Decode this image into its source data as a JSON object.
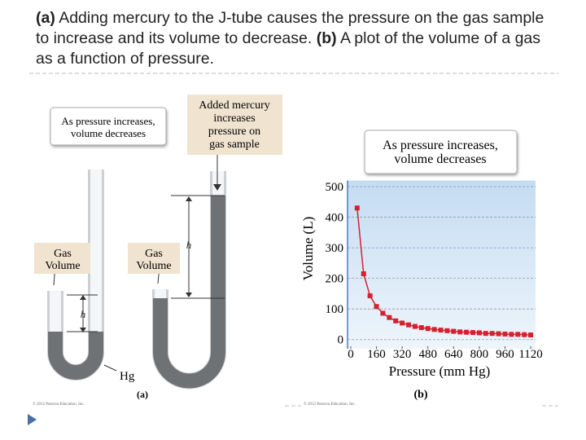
{
  "header": {
    "parts": [
      "(a)",
      "Adding mercury to the J-tube causes the pressure on the gas sample to increase and its volume to decrease.",
      "(b)",
      "A plot of the volume of a gas as a function of pressure."
    ]
  },
  "diagram": {
    "callout": [
      "As pressure increases,",
      "volume decreases"
    ],
    "added_mercury": [
      "Added mercury",
      "increases",
      "pressure on",
      "gas sample"
    ],
    "gas_volume_left": [
      "Gas",
      "Volume"
    ],
    "gas_volume_right": [
      "Gas",
      "Volume"
    ],
    "h_left": "h",
    "h_right": "h",
    "hg": "Hg",
    "label_a": "(a)",
    "label_b": "(b)",
    "copyright_a": "© 2012 Pearson Education, Inc.",
    "copyright_b": "© 2012 Pearson Education, Inc."
  },
  "chart_data": {
    "type": "line",
    "annotation": [
      "As pressure increases,",
      "volume decreases"
    ],
    "x_label": "Pressure (mm Hg)",
    "y_label": "Volume (L)",
    "x": [
      40,
      80,
      120,
      160,
      200,
      240,
      280,
      320,
      360,
      400,
      440,
      480,
      520,
      560,
      600,
      640,
      680,
      720,
      760,
      800,
      840,
      880,
      920,
      960,
      1000,
      1040,
      1080,
      1120
    ],
    "series": [
      {
        "color": "#d4212f",
        "values": [
          430,
          215,
          143,
          108,
          86,
          72,
          61,
          54,
          48,
          43,
          39,
          36,
          33,
          31,
          29,
          27,
          25,
          24,
          23,
          22,
          20,
          20,
          19,
          18,
          17,
          17,
          16,
          15
        ]
      }
    ],
    "xlim": [
      -20,
      1150
    ],
    "ylim": [
      -30,
      520
    ],
    "xticks": [
      0,
      160,
      320,
      480,
      640,
      800,
      960,
      1120
    ],
    "yticks": [
      0,
      100,
      200,
      300,
      400,
      500
    ],
    "grid": true
  }
}
